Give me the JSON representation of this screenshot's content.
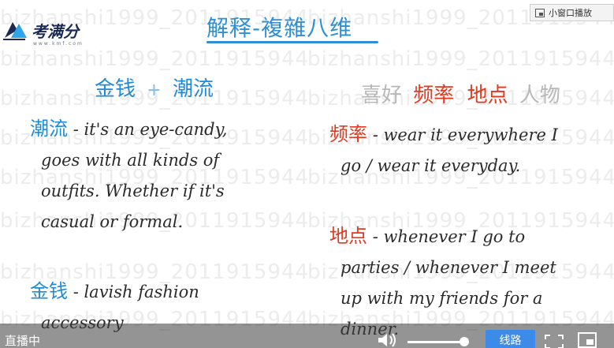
{
  "watermark": "bizhanshi1999_2011915944",
  "logo": {
    "text": "考满分",
    "sub": "www.kmf.com"
  },
  "mini_window_button": {
    "label": "小窗口播放",
    "icon": "mini-window-icon"
  },
  "slide": {
    "title": "解释-複雜八维",
    "left_header": {
      "a": "金钱",
      "plus": "+",
      "b": "潮流"
    },
    "right_header": {
      "a": "喜好",
      "b": "频率",
      "c": "地点",
      "d": "人物"
    },
    "left_blocks": [
      {
        "keyword": "潮流",
        "lines": [
          "- it's an eye-candy,",
          "goes with all kinds of",
          "outfits. Whether if it's",
          "casual or formal."
        ]
      },
      {
        "keyword": "金钱",
        "lines": [
          "- lavish fashion",
          "accessory"
        ]
      }
    ],
    "right_blocks": [
      {
        "keyword": "频率",
        "lines": [
          "- wear it everywhere I",
          "go / wear it everyday."
        ]
      },
      {
        "keyword": "地点",
        "lines": [
          "- whenever I go to",
          "parties / whenever I meet",
          "up with my friends for a",
          "dinner."
        ]
      }
    ]
  },
  "player": {
    "status": "直播中",
    "volume_icon": "speaker-icon",
    "volume_level": 0.92,
    "line_button": "线路",
    "fullscreen_icon": "fullscreen-icon",
    "pip_icon": "picture-in-picture-icon"
  },
  "colors": {
    "title": "#2f8fd3",
    "keyword_blue": "#1f8bd6",
    "keyword_red": "#e23a1e",
    "button": "#3d8be8"
  }
}
